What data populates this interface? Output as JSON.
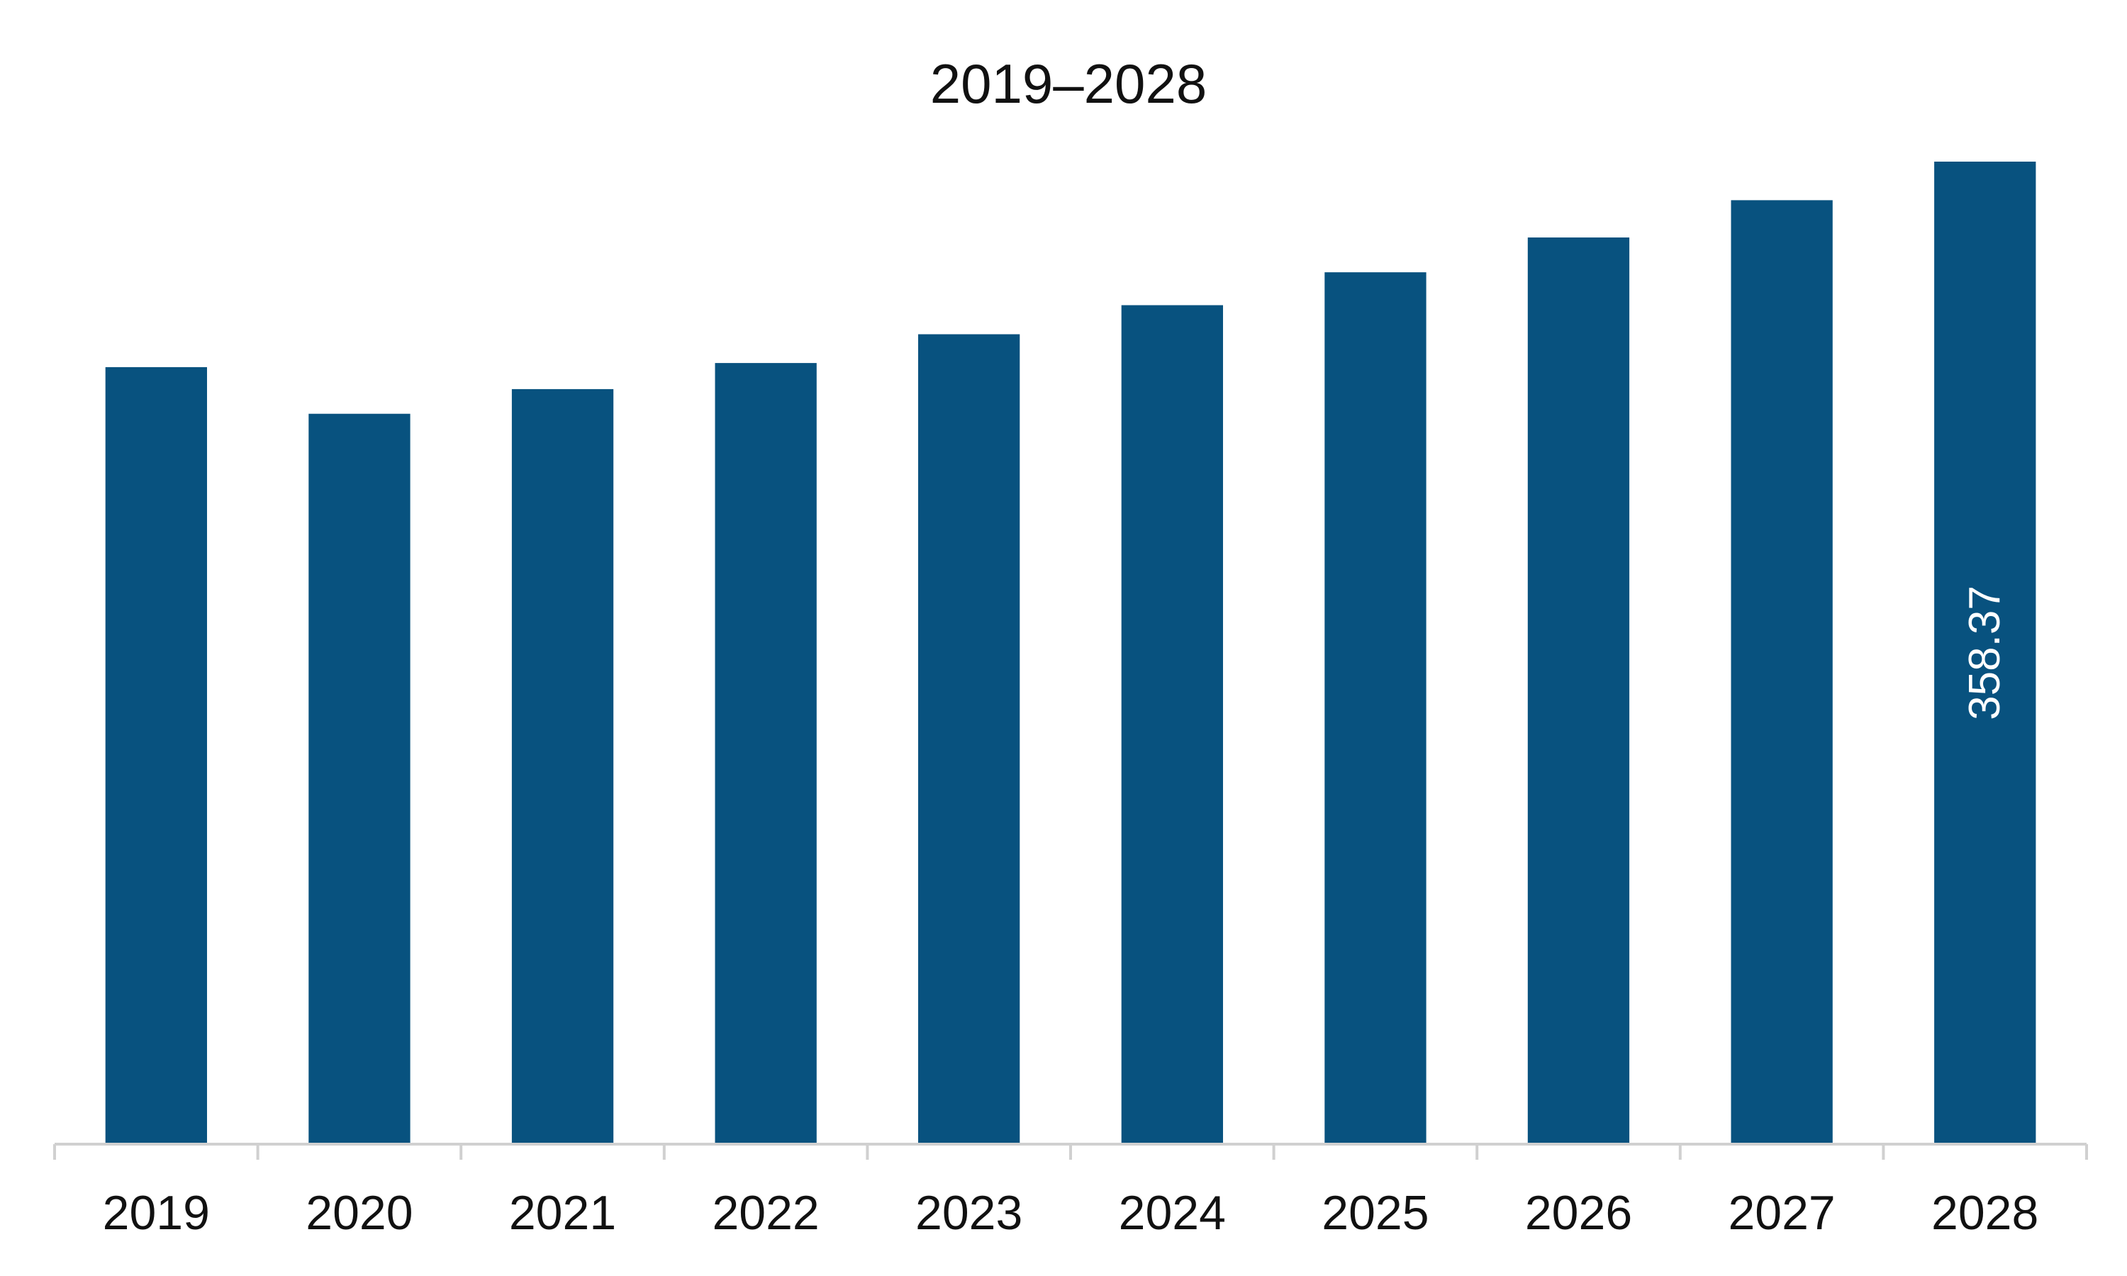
{
  "chart_data": {
    "type": "bar",
    "title": "2019–2028",
    "xlabel": "",
    "ylabel": "",
    "categories": [
      "2019",
      "2020",
      "2021",
      "2022",
      "2023",
      "2024",
      "2025",
      "2026",
      "2027",
      "2028"
    ],
    "values": [
      283.4,
      266.4,
      275.4,
      284.9,
      295.4,
      306.0,
      318.0,
      330.7,
      344.3,
      358.37
    ],
    "value_labels": [
      "",
      "",
      "",
      "",
      "",
      "",
      "",
      "",
      "",
      "358.37"
    ],
    "ylim": [
      0,
      358.37
    ],
    "grid": false,
    "legend": "none",
    "bar_color": "#08527F",
    "axis_color": "#D0D0D0"
  }
}
